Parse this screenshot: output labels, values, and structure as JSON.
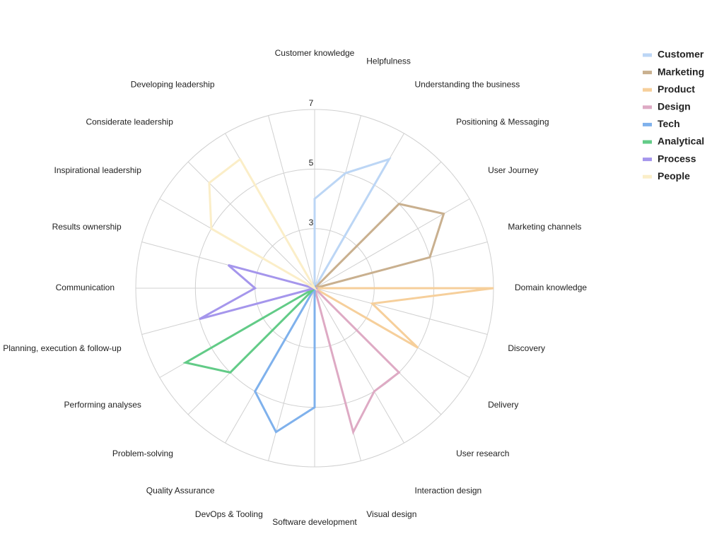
{
  "chart_data": {
    "type": "radar",
    "categories": [
      "Customer knowledge",
      "Helpfulness",
      "Understanding the business",
      "Positioning & Messaging",
      "User Journey",
      "Marketing channels",
      "Domain knowledge",
      "Discovery",
      "Delivery",
      "User research",
      "Interaction design",
      "Visual design",
      "Software development",
      "DevOps & Tooling",
      "Quality Assurance",
      "Problem-solving",
      "Performing analyses",
      "Planning, execution & follow-up",
      "Communication",
      "Results ownership",
      "Inspirational leadership",
      "Considerate leadership",
      "Developing leadership",
      null
    ],
    "ylim": [
      1,
      7
    ],
    "yticks": [
      3,
      5,
      7
    ],
    "grid": true,
    "series": [
      {
        "name": "Customer",
        "color": "#bcd6f5",
        "values": [
          4,
          5,
          6,
          1,
          1,
          1,
          1,
          1,
          1,
          1,
          1,
          1,
          1,
          1,
          1,
          1,
          1,
          1,
          1,
          1,
          1,
          1,
          1,
          1
        ]
      },
      {
        "name": "Marketing",
        "color": "#c9b08f",
        "values": [
          1,
          1,
          1,
          5,
          6,
          5,
          1,
          1,
          1,
          1,
          1,
          1,
          1,
          1,
          1,
          1,
          1,
          1,
          1,
          1,
          1,
          1,
          1,
          1
        ]
      },
      {
        "name": "Product",
        "color": "#f6cf9b",
        "values": [
          1,
          1,
          1,
          1,
          1,
          1,
          7,
          3,
          5,
          1,
          1,
          1,
          1,
          1,
          1,
          1,
          1,
          1,
          1,
          1,
          1,
          1,
          1,
          1
        ]
      },
      {
        "name": "Design",
        "color": "#deaac4",
        "values": [
          1,
          1,
          1,
          1,
          1,
          1,
          1,
          1,
          1,
          5,
          5,
          6,
          1,
          1,
          1,
          1,
          1,
          1,
          1,
          1,
          1,
          1,
          1,
          1
        ]
      },
      {
        "name": "Tech",
        "color": "#7fb1ec",
        "values": [
          1,
          1,
          1,
          1,
          1,
          1,
          1,
          1,
          1,
          1,
          1,
          1,
          5,
          6,
          5,
          1,
          1,
          1,
          1,
          1,
          1,
          1,
          1,
          1
        ]
      },
      {
        "name": "Analytical",
        "color": "#62cb87",
        "values": [
          1,
          1,
          1,
          1,
          1,
          1,
          1,
          1,
          1,
          1,
          1,
          1,
          1,
          1,
          1,
          5,
          6,
          1,
          1,
          1,
          1,
          1,
          1,
          1
        ]
      },
      {
        "name": "Process",
        "color": "#a596ec",
        "values": [
          1,
          1,
          1,
          1,
          1,
          1,
          1,
          1,
          1,
          1,
          1,
          1,
          1,
          1,
          1,
          1,
          1,
          5,
          3,
          4,
          1,
          1,
          1,
          1
        ]
      },
      {
        "name": "People",
        "color": "#fbeec8",
        "values": [
          1,
          1,
          1,
          1,
          1,
          1,
          1,
          1,
          1,
          1,
          1,
          1,
          1,
          1,
          1,
          1,
          1,
          1,
          1,
          1,
          5,
          6,
          6,
          1
        ]
      }
    ]
  }
}
